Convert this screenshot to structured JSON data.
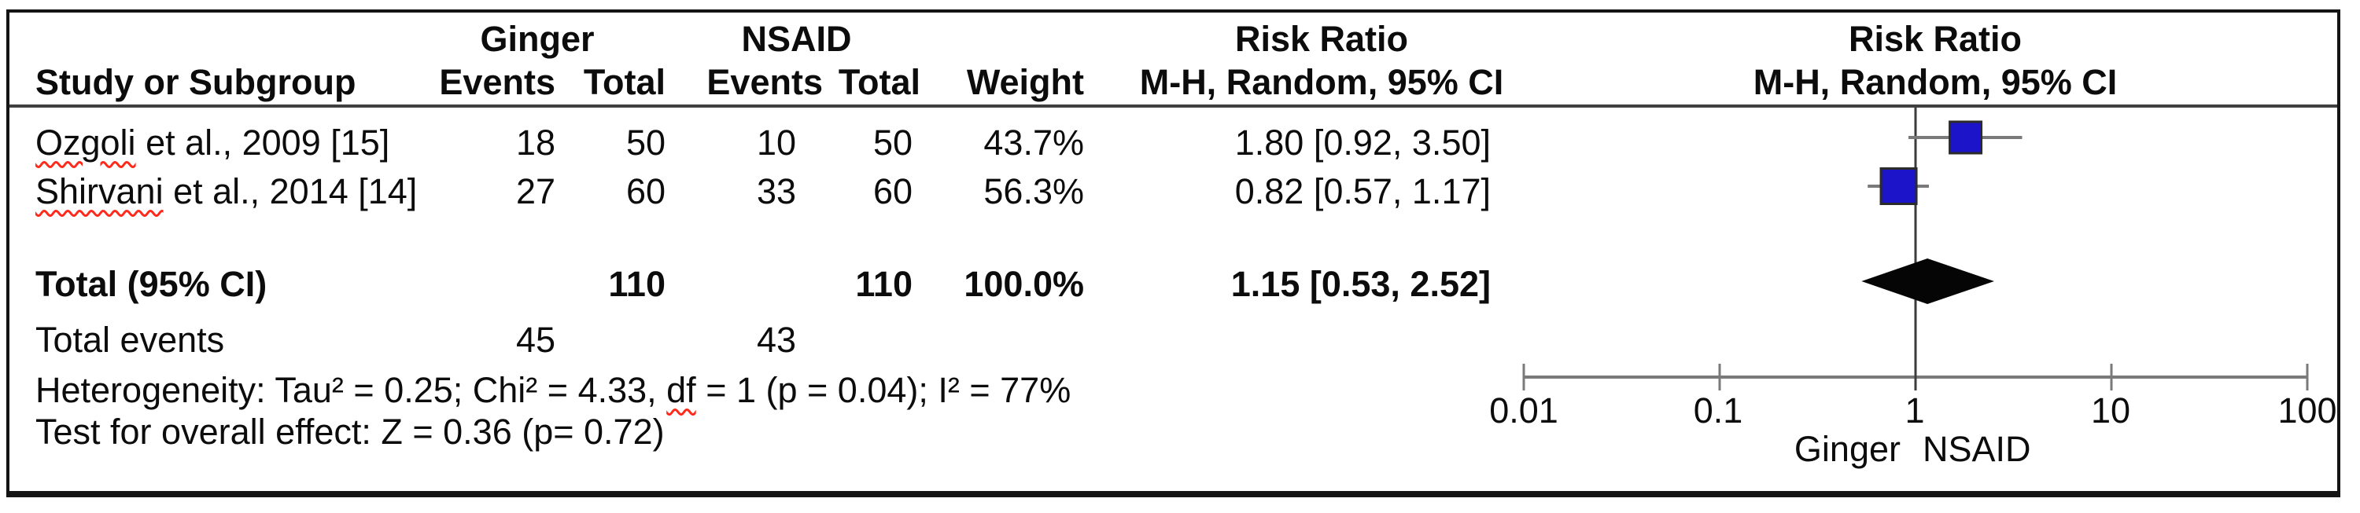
{
  "header": {
    "group1": "Ginger",
    "group2": "NSAID",
    "risk_ratio": "Risk Ratio",
    "method_ci": "M-H, Random, 95% CI",
    "study": "Study or Subgroup",
    "events": "Events",
    "total": "Total",
    "weight": "Weight"
  },
  "rows": [
    {
      "study_misspelled": "Ozgoli",
      "study_rest": " et al., 2009 [15]",
      "g_events": "18",
      "g_total": "50",
      "n_events": "10",
      "n_total": "50",
      "weight": "43.7%",
      "ci": "1.80 [0.92, 3.50]"
    },
    {
      "study_misspelled": "Shirvani",
      "study_rest": " et al., 2014 [14]",
      "g_events": "27",
      "g_total": "60",
      "n_events": "33",
      "n_total": "60",
      "weight": "56.3%",
      "ci": "0.82 [0.57, 1.17]"
    }
  ],
  "totals": {
    "label": "Total (95% CI)",
    "g_total": "110",
    "n_total": "110",
    "weight": "100.0%",
    "ci": "1.15 [0.53, 2.52]",
    "events_label": "Total events",
    "g_events": "45",
    "n_events": "43"
  },
  "footer": {
    "het_pre": "Heterogeneity: Tau² = 0.25; Chi² = 4.33, ",
    "het_wavy": "df",
    "het_post": " = 1 (p = 0.04); I² = 77%",
    "overall": "Test for overall effect: Z = 0.36 (p= 0.72)"
  },
  "axis": {
    "ticks": [
      "0.01",
      "0.1",
      "1",
      "10",
      "100"
    ],
    "left_label": "Ginger",
    "right_label": "NSAID"
  },
  "colors": {
    "square": "#1c14c8",
    "square_border": "#2b2b2b",
    "diamond": "#050505",
    "ci_line": "#7a7a7a",
    "axis_line": "#7a7a7a",
    "null_line": "#3c3c3c",
    "squiggle": "#ff2a1c"
  },
  "chart_data": {
    "type": "forest",
    "title": "",
    "effect_measure": "Risk Ratio",
    "method": "M-H, Random, 95% CI",
    "x_axis": {
      "scale": "log",
      "ticks": [
        0.01,
        0.1,
        1,
        10,
        100
      ],
      "range": [
        0.01,
        100
      ],
      "favours_left": "Ginger",
      "favours_right": "NSAID"
    },
    "studies": [
      {
        "name": "Ozgoli et al., 2009 [15]",
        "rr": 1.8,
        "ci_low": 0.92,
        "ci_high": 3.5,
        "weight_pct": 43.7,
        "ginger_events": 18,
        "ginger_total": 50,
        "nsaid_events": 10,
        "nsaid_total": 50
      },
      {
        "name": "Shirvani et al., 2014 [14]",
        "rr": 0.82,
        "ci_low": 0.57,
        "ci_high": 1.17,
        "weight_pct": 56.3,
        "ginger_events": 27,
        "ginger_total": 60,
        "nsaid_events": 33,
        "nsaid_total": 60
      }
    ],
    "total": {
      "rr": 1.15,
      "ci_low": 0.53,
      "ci_high": 2.52,
      "weight_pct": 100.0,
      "ginger_events": 45,
      "ginger_total": 110,
      "nsaid_events": 43,
      "nsaid_total": 110
    },
    "heterogeneity": {
      "tau2": 0.25,
      "chi2": 4.33,
      "df": 1,
      "p": 0.04,
      "i2_pct": 77
    },
    "overall_effect": {
      "z": 0.36,
      "p": 0.72
    }
  }
}
